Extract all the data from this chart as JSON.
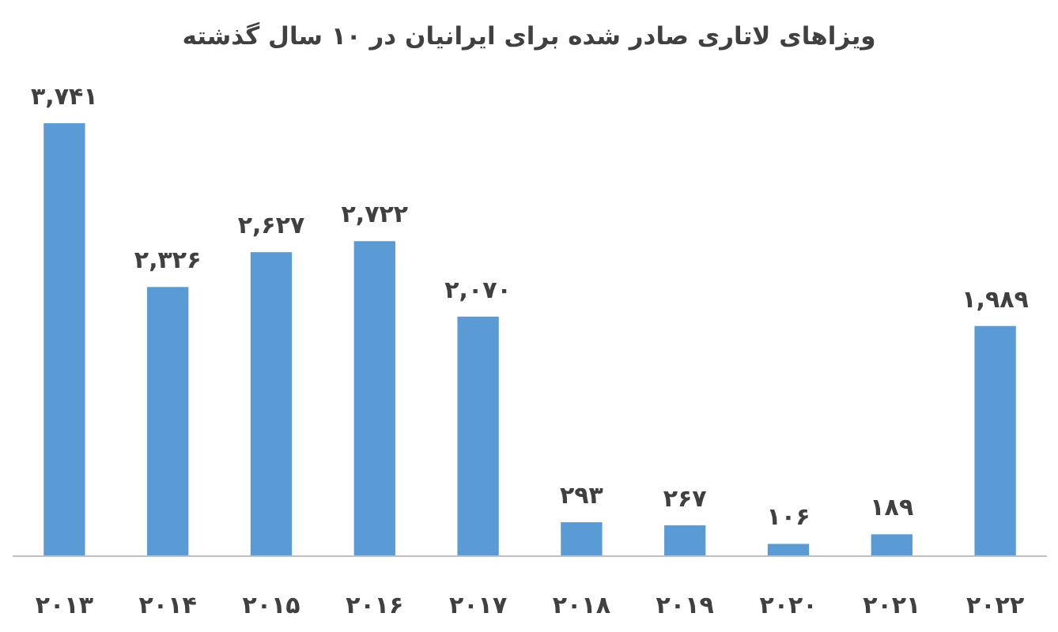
{
  "chart_data": {
    "type": "bar",
    "title": "ویزاهای لاتاری صادر شده برای ایرانیان در ۱۰ سال گذشته",
    "categories": [
      "۲۰۱۳",
      "۲۰۱۴",
      "۲۰۱۵",
      "۲۰۱۶",
      "۲۰۱۷",
      "۲۰۱۸",
      "۲۰۱۹",
      "۲۰۲۰",
      "۲۰۲۱",
      "۲۰۲۲"
    ],
    "values": [
      3741,
      2326,
      2627,
      2722,
      2070,
      293,
      267,
      106,
      189,
      1989
    ],
    "value_labels": [
      "۳,۷۴۱",
      "۲,۳۲۶",
      "۲,۶۲۷",
      "۲,۷۲۲",
      "۲,۰۷۰",
      "۲۹۳",
      "۲۶۷",
      "۱۰۶",
      "۱۸۹",
      "۱,۹۸۹"
    ],
    "color": "#5b9bd5"
  }
}
